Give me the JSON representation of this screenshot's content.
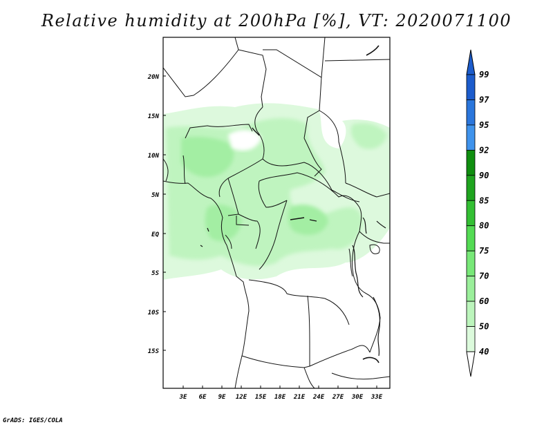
{
  "title": "Relative humidity at 200hPa [%], VT: 2020071100",
  "credit": "GrADS: IGES/COLA",
  "map": {
    "lat_labels": [
      "20N",
      "15N",
      "10N",
      "5N",
      "EQ",
      "5S",
      "10S",
      "15S"
    ],
    "lon_labels": [
      "3E",
      "6E",
      "9E",
      "12E",
      "15E",
      "18E",
      "21E",
      "24E",
      "27E",
      "30E",
      "33E"
    ]
  },
  "colorbar": {
    "levels": [
      "99",
      "97",
      "95",
      "92",
      "90",
      "85",
      "80",
      "75",
      "70",
      "60",
      "50",
      "40"
    ],
    "colors": [
      "#1c5ccc",
      "#2a76dc",
      "#3f93ec",
      "#0f8e0f",
      "#1fa41f",
      "#33bf33",
      "#54db54",
      "#78e878",
      "#9bef9b",
      "#bcf5bc",
      "#dcfadc",
      "#f2fef2"
    ]
  }
}
